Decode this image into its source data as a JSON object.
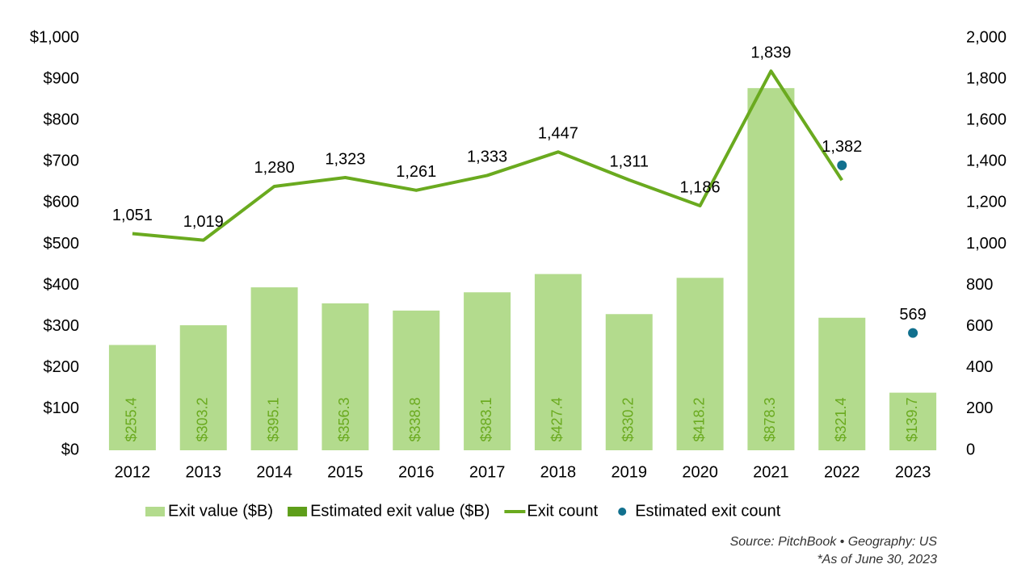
{
  "chart_data": {
    "type": "bar",
    "categories": [
      "2012",
      "2013",
      "2014",
      "2015",
      "2016",
      "2017",
      "2018",
      "2019",
      "2020",
      "2021",
      "2022",
      "2023"
    ],
    "series": [
      {
        "name": "Exit value ($B)",
        "type": "bar",
        "color": "#b3db8d",
        "values": [
          255.4,
          303.2,
          395.1,
          356.3,
          338.8,
          383.1,
          427.4,
          330.2,
          418.2,
          878.3,
          321.4,
          139.7
        ],
        "value_labels": [
          "$255.4",
          "$303.2",
          "$395.1",
          "$356.3",
          "$338.8",
          "$383.1",
          "$427.4",
          "$330.2",
          "$418.2",
          "$878.3",
          "$321.4",
          "$139.7"
        ]
      },
      {
        "name": "Estimated exit value ($B)",
        "type": "bar",
        "color": "#5e9e1a",
        "values": [
          null,
          null,
          null,
          null,
          null,
          null,
          null,
          null,
          null,
          null,
          null,
          null
        ]
      },
      {
        "name": "Exit count",
        "type": "line",
        "axis": "y2",
        "color": "#6aaa1f",
        "values": [
          1051,
          1019,
          1280,
          1323,
          1261,
          1333,
          1447,
          1311,
          1186,
          1839,
          1310,
          null
        ],
        "value_labels": [
          "1,051",
          "1,019",
          "1,280",
          "1,323",
          "1,261",
          "1,333",
          "1,447",
          "1,311",
          "1,186",
          "1,839",
          null,
          null
        ]
      },
      {
        "name": "Estimated exit count",
        "type": "scatter",
        "axis": "y2",
        "color": "#11708e",
        "values": [
          null,
          null,
          null,
          null,
          null,
          null,
          null,
          null,
          null,
          null,
          1382,
          569
        ],
        "value_labels": [
          null,
          null,
          null,
          null,
          null,
          null,
          null,
          null,
          null,
          null,
          "1,382",
          "569"
        ]
      }
    ],
    "ylim": [
      0,
      1000
    ],
    "yticks": [
      {
        "value": 0,
        "label": "$0"
      },
      {
        "value": 100,
        "label": "$100"
      },
      {
        "value": 200,
        "label": "$200"
      },
      {
        "value": 300,
        "label": "$300"
      },
      {
        "value": 400,
        "label": "$400"
      },
      {
        "value": 500,
        "label": "$500"
      },
      {
        "value": 600,
        "label": "$600"
      },
      {
        "value": 700,
        "label": "$700"
      },
      {
        "value": 800,
        "label": "$800"
      },
      {
        "value": 900,
        "label": "$900"
      },
      {
        "value": 1000,
        "label": "$1,000"
      }
    ],
    "y2lim": [
      0,
      2000
    ],
    "y2ticks": [
      0,
      200,
      400,
      600,
      800,
      {
        "value": 1000,
        "label": "1,000"
      },
      {
        "value": 1200,
        "label": "1,200"
      },
      {
        "value": 1400,
        "label": "1,400"
      },
      {
        "value": 1600,
        "label": "1,600"
      },
      {
        "value": 1800,
        "label": "1,800"
      },
      {
        "value": 2000,
        "label": "2,000"
      }
    ],
    "grid": false,
    "legend": "bottom",
    "notes": [
      "Source: PitchBook •  Geography: US",
      "*As of June 30, 2023"
    ]
  }
}
